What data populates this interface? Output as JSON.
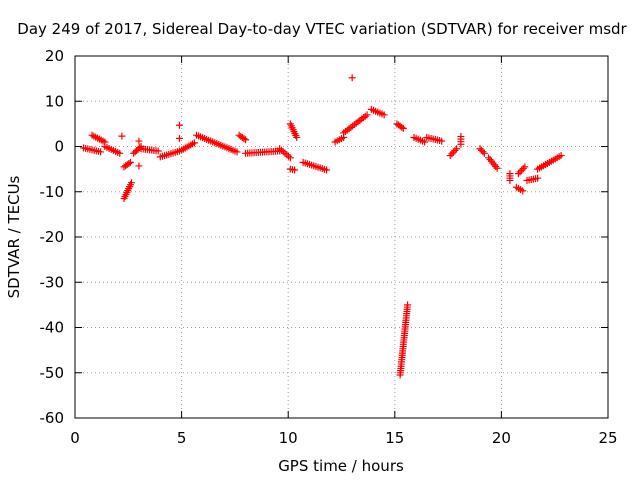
{
  "chart_data": {
    "type": "scatter",
    "title": "Day 249 of 2017, Sidereal Day-to-day VTEC variation (SDTVAR) for receiver msdr",
    "xlabel": "GPS time / hours",
    "ylabel": "SDTVAR / TECUs",
    "xlim": [
      0,
      25
    ],
    "ylim": [
      -60,
      20
    ],
    "xticks": [
      0,
      5,
      10,
      15,
      20,
      25
    ],
    "yticks": [
      -60,
      -50,
      -40,
      -30,
      -20,
      -10,
      0,
      10,
      20
    ],
    "grid": true,
    "marker": "plus",
    "color": "#ff0000",
    "series": [
      {
        "name": "SDTVAR",
        "segments": [
          {
            "x": [
              0.4,
              1.2
            ],
            "y": [
              -0.3,
              -1.2
            ]
          },
          {
            "x": [
              0.8,
              1.4
            ],
            "y": [
              2.5,
              1.0
            ]
          },
          {
            "x": [
              1.4,
              2.1
            ],
            "y": [
              0.0,
              -1.5
            ]
          },
          {
            "x": [
              2.2,
              2.2
            ],
            "y": [
              2.3,
              2.3
            ]
          },
          {
            "x": [
              2.3,
              2.65
            ],
            "y": [
              -11.5,
              -8.0
            ]
          },
          {
            "x": [
              2.3,
              2.6
            ],
            "y": [
              -4.5,
              -3.5
            ]
          },
          {
            "x": [
              2.75,
              3.1
            ],
            "y": [
              -1.5,
              0.0
            ]
          },
          {
            "x": [
              3.0,
              3.0
            ],
            "y": [
              1.2,
              1.2
            ]
          },
          {
            "x": [
              3.0,
              3.0
            ],
            "y": [
              -4.3,
              -4.3
            ]
          },
          {
            "x": [
              3.1,
              3.9
            ],
            "y": [
              -0.5,
              -1.0
            ]
          },
          {
            "x": [
              4.0,
              4.9
            ],
            "y": [
              -2.3,
              -1.0
            ]
          },
          {
            "x": [
              4.9,
              4.9
            ],
            "y": [
              4.7,
              4.7
            ]
          },
          {
            "x": [
              4.9,
              4.9
            ],
            "y": [
              1.8,
              1.8
            ]
          },
          {
            "x": [
              5.0,
              5.6
            ],
            "y": [
              -0.8,
              0.8
            ]
          },
          {
            "x": [
              5.7,
              7.6
            ],
            "y": [
              2.5,
              -1.2
            ]
          },
          {
            "x": [
              7.7,
              8.0
            ],
            "y": [
              2.5,
              1.5
            ]
          },
          {
            "x": [
              8.0,
              9.6
            ],
            "y": [
              -1.5,
              -1.0
            ]
          },
          {
            "x": [
              9.6,
              10.1
            ],
            "y": [
              -0.5,
              -2.5
            ]
          },
          {
            "x": [
              10.1,
              10.4
            ],
            "y": [
              5.0,
              2.0
            ]
          },
          {
            "x": [
              10.1,
              10.3
            ],
            "y": [
              -5.0,
              -5.2
            ]
          },
          {
            "x": [
              10.7,
              11.8
            ],
            "y": [
              -3.5,
              -5.2
            ]
          },
          {
            "x": [
              12.2,
              12.6
            ],
            "y": [
              1.0,
              2.0
            ]
          },
          {
            "x": [
              12.6,
              13.7
            ],
            "y": [
              3.0,
              7.0
            ]
          },
          {
            "x": [
              13.0,
              13.0
            ],
            "y": [
              15.2,
              15.2
            ]
          },
          {
            "x": [
              13.9,
              14.5
            ],
            "y": [
              8.2,
              7.0
            ]
          },
          {
            "x": [
              15.1,
              15.4
            ],
            "y": [
              5.0,
              4.0
            ]
          },
          {
            "x": [
              15.25,
              15.6
            ],
            "y": [
              -50.5,
              -35.0
            ]
          },
          {
            "x": [
              15.9,
              16.4
            ],
            "y": [
              2.0,
              1.0
            ]
          },
          {
            "x": [
              16.5,
              17.2
            ],
            "y": [
              2.0,
              1.2
            ]
          },
          {
            "x": [
              17.6,
              17.9
            ],
            "y": [
              -2.0,
              -0.5
            ]
          },
          {
            "x": [
              18.1,
              18.1
            ],
            "y": [
              2.2,
              0.5
            ]
          },
          {
            "x": [
              19.0,
              19.2
            ],
            "y": [
              -0.5,
              -1.5
            ]
          },
          {
            "x": [
              19.4,
              19.8
            ],
            "y": [
              -2.5,
              -4.8
            ]
          },
          {
            "x": [
              20.4,
              20.4
            ],
            "y": [
              -6.0,
              -7.5
            ]
          },
          {
            "x": [
              20.7,
              21.0
            ],
            "y": [
              -9.0,
              -9.8
            ]
          },
          {
            "x": [
              20.8,
              21.1
            ],
            "y": [
              -6.0,
              -4.5
            ]
          },
          {
            "x": [
              21.2,
              21.7
            ],
            "y": [
              -7.5,
              -7.0
            ]
          },
          {
            "x": [
              21.7,
              22.8
            ],
            "y": [
              -5.0,
              -2.0
            ]
          }
        ]
      }
    ]
  }
}
